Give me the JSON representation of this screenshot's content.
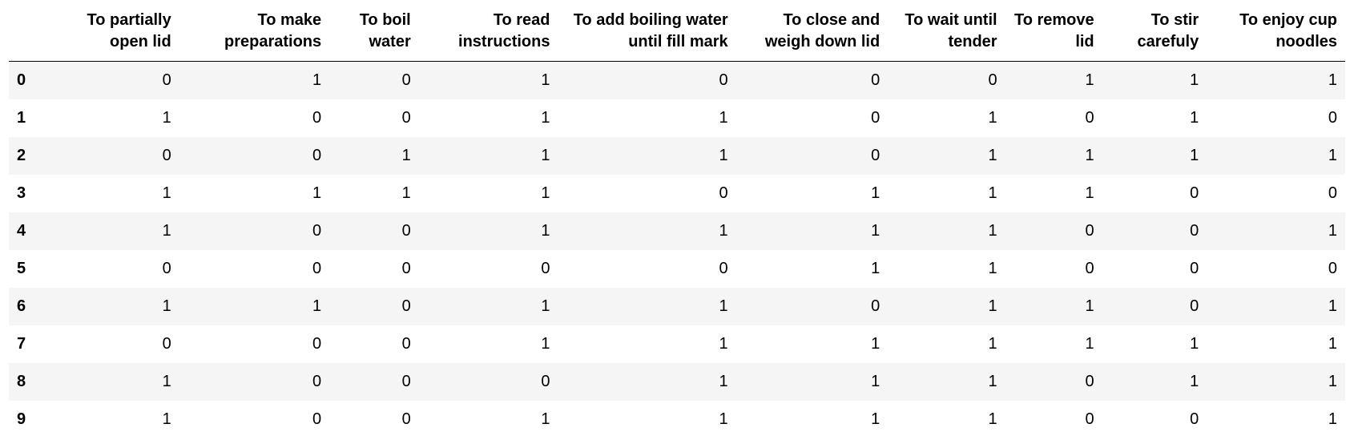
{
  "table": {
    "columns": [
      "To partially open lid",
      "To make preparations",
      "To boil water",
      "To read instructions",
      "To add boiling water until fill mark",
      "To close and weigh down lid",
      "To wait until tender",
      "To remove lid",
      "To stir carefuly",
      "To enjoy cup noodles"
    ],
    "rows": [
      {
        "index": "0",
        "values": [
          "0",
          "1",
          "0",
          "1",
          "0",
          "0",
          "0",
          "1",
          "1",
          "1"
        ]
      },
      {
        "index": "1",
        "values": [
          "1",
          "0",
          "0",
          "1",
          "1",
          "0",
          "1",
          "0",
          "1",
          "0"
        ]
      },
      {
        "index": "2",
        "values": [
          "0",
          "0",
          "1",
          "1",
          "1",
          "0",
          "1",
          "1",
          "1",
          "1"
        ]
      },
      {
        "index": "3",
        "values": [
          "1",
          "1",
          "1",
          "1",
          "0",
          "1",
          "1",
          "1",
          "0",
          "0"
        ]
      },
      {
        "index": "4",
        "values": [
          "1",
          "0",
          "0",
          "1",
          "1",
          "1",
          "1",
          "0",
          "0",
          "1"
        ]
      },
      {
        "index": "5",
        "values": [
          "0",
          "0",
          "0",
          "0",
          "0",
          "1",
          "1",
          "0",
          "0",
          "0"
        ]
      },
      {
        "index": "6",
        "values": [
          "1",
          "1",
          "0",
          "1",
          "1",
          "0",
          "1",
          "1",
          "0",
          "1"
        ]
      },
      {
        "index": "7",
        "values": [
          "0",
          "0",
          "0",
          "1",
          "1",
          "1",
          "1",
          "1",
          "1",
          "1"
        ]
      },
      {
        "index": "8",
        "values": [
          "1",
          "0",
          "0",
          "0",
          "1",
          "1",
          "1",
          "0",
          "1",
          "1"
        ]
      },
      {
        "index": "9",
        "values": [
          "1",
          "0",
          "0",
          "1",
          "1",
          "1",
          "1",
          "0",
          "0",
          "1"
        ]
      }
    ]
  }
}
